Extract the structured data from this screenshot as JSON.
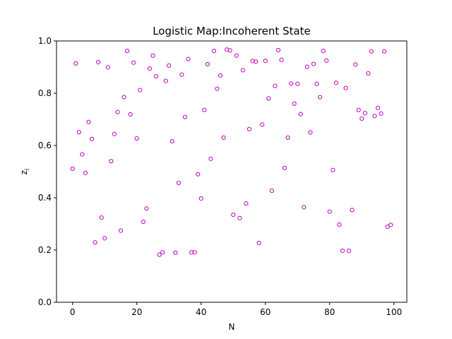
{
  "chart_data": {
    "type": "scatter",
    "title": "Logistic Map:Incoherent State",
    "xlabel": "N",
    "ylabel": "z",
    "ylabel_subscript": "i",
    "xlim": [
      -5,
      104
    ],
    "ylim": [
      0.0,
      1.0
    ],
    "xticks": [
      0,
      20,
      40,
      60,
      80,
      100
    ],
    "yticks": [
      0.0,
      0.2,
      0.4,
      0.6,
      0.8,
      1.0
    ],
    "xtick_labels": [
      "0",
      "20",
      "40",
      "60",
      "80",
      "100"
    ],
    "ytick_labels": [
      "0.0",
      "0.2",
      "0.4",
      "0.6",
      "0.8",
      "1.0"
    ],
    "grid": false,
    "marker": "hollow-circle",
    "color": "#bf00bf",
    "series": [
      {
        "x": [
          0,
          1,
          2,
          3,
          4,
          5,
          6,
          7,
          8,
          9,
          10,
          11,
          12,
          13,
          14,
          15,
          16,
          17,
          18,
          19,
          20,
          21,
          22,
          23,
          24,
          25,
          26,
          27,
          28,
          29,
          30,
          31,
          32,
          33,
          34,
          35,
          36,
          37,
          38,
          39,
          40,
          41,
          42,
          43,
          44,
          45,
          46,
          47,
          48,
          49,
          50,
          51,
          52,
          53,
          54,
          55,
          56,
          57,
          58,
          59,
          60,
          61,
          62,
          63,
          64,
          65,
          66,
          67,
          68,
          69,
          70,
          71,
          72,
          73,
          74,
          75,
          76,
          77,
          78,
          79,
          80,
          81,
          82,
          83,
          84,
          85,
          86,
          87,
          88,
          89,
          90,
          91,
          92,
          93,
          94,
          95,
          96,
          97,
          98,
          99
        ],
        "y": [
          0.511,
          0.914,
          0.651,
          0.566,
          0.495,
          0.69,
          0.625,
          0.229,
          0.919,
          0.324,
          0.245,
          0.899,
          0.54,
          0.644,
          0.728,
          0.274,
          0.785,
          0.962,
          0.719,
          0.917,
          0.627,
          0.812,
          0.308,
          0.359,
          0.894,
          0.944,
          0.865,
          0.182,
          0.191,
          0.847,
          0.906,
          0.616,
          0.19,
          0.457,
          0.871,
          0.709,
          0.931,
          0.191,
          0.191,
          0.49,
          0.397,
          0.736,
          0.911,
          0.549,
          0.962,
          0.817,
          0.868,
          0.63,
          0.967,
          0.964,
          0.335,
          0.944,
          0.322,
          0.888,
          0.378,
          0.663,
          0.923,
          0.921,
          0.227,
          0.68,
          0.924,
          0.78,
          0.427,
          0.828,
          0.965,
          0.928,
          0.514,
          0.63,
          0.837,
          0.76,
          0.836,
          0.72,
          0.364,
          0.901,
          0.65,
          0.912,
          0.836,
          0.785,
          0.962,
          0.925,
          0.347,
          0.506,
          0.84,
          0.297,
          0.197,
          0.82,
          0.197,
          0.353,
          0.91,
          0.736,
          0.703,
          0.724,
          0.876,
          0.96,
          0.713,
          0.744,
          0.722,
          0.96,
          0.289,
          0.296
        ]
      }
    ]
  }
}
